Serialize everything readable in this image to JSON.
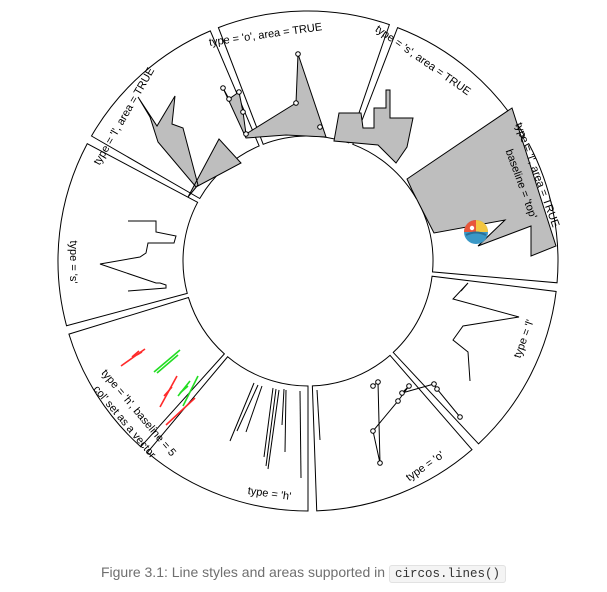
{
  "sectors": [
    {
      "label": "type = 'l', area = TRUE"
    },
    {
      "label": "type = 'o', area = TRUE"
    },
    {
      "label": "type = 's', area = TRUE"
    },
    {
      "label": "type = 'l', area = TRUE",
      "label2": "baseline = 'top'"
    },
    {
      "label": "type = 'l'"
    },
    {
      "label": "type = 'o'"
    },
    {
      "label": "type = 'h'"
    },
    {
      "label": "type = 'h', baseline = 5",
      "label2": "col' set as a vector"
    },
    {
      "label": "type = 's'"
    }
  ],
  "colors": {
    "area_fill": "#bebebe",
    "line": "#000000",
    "h_red": "#ff2a2a",
    "h_green": "#22dd22"
  },
  "caption": {
    "text": "Figure 3.1: Line styles and areas supported in",
    "code": "circos.lines()"
  }
}
